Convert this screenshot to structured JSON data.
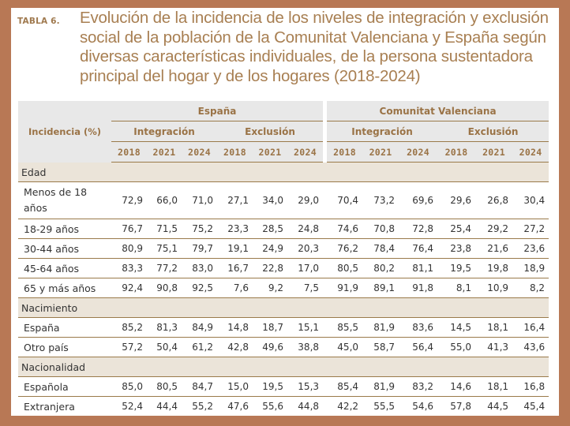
{
  "title": {
    "label": "TABLA 6.",
    "text": "Evolución de la incidencia de los niveles de integración y exclusión social de la población de la Comunitat Valenciana y España según diversas características individuales, de la persona sustentadora principal del hogar y de los hogares (2018-2024)"
  },
  "colors": {
    "frame": "#b87855",
    "title": "#a87f52",
    "header_bg": "#e8e8e8",
    "group_bg": "#ebe4d9",
    "rule": "#9a7a4a"
  },
  "header": {
    "row_label": "Incidencia (%)",
    "regions": [
      "España",
      "Comunitat Valenciana"
    ],
    "measures": [
      "Integración",
      "Exclusión",
      "Integración",
      "Exclusión"
    ],
    "years": [
      "2018",
      "2021",
      "2024",
      "2018",
      "2021",
      "2024",
      "2018",
      "2021",
      "2024",
      "2018",
      "2021",
      "2024"
    ]
  },
  "groups": [
    {
      "name": "Edad",
      "rows": [
        {
          "label": "Menos de 18 años",
          "values": [
            "72,9",
            "66,0",
            "71,0",
            "27,1",
            "34,0",
            "29,0",
            "70,4",
            "73,2",
            "69,6",
            "29,6",
            "26,8",
            "30,4"
          ]
        },
        {
          "label": "18-29 años",
          "values": [
            "76,7",
            "71,5",
            "75,2",
            "23,3",
            "28,5",
            "24,8",
            "74,6",
            "70,8",
            "72,8",
            "25,4",
            "29,2",
            "27,2"
          ]
        },
        {
          "label": "30-44 años",
          "values": [
            "80,9",
            "75,1",
            "79,7",
            "19,1",
            "24,9",
            "20,3",
            "76,2",
            "78,4",
            "76,4",
            "23,8",
            "21,6",
            "23,6"
          ]
        },
        {
          "label": "45-64 años",
          "values": [
            "83,3",
            "77,2",
            "83,0",
            "16,7",
            "22,8",
            "17,0",
            "80,5",
            "80,2",
            "81,1",
            "19,5",
            "19,8",
            "18,9"
          ]
        },
        {
          "label": "65 y más años",
          "values": [
            "92,4",
            "90,8",
            "92,5",
            "7,6",
            "9,2",
            "7,5",
            "91,9",
            "89,1",
            "91,8",
            "8,1",
            "10,9",
            "8,2"
          ]
        }
      ]
    },
    {
      "name": "Nacimiento",
      "rows": [
        {
          "label": "España",
          "values": [
            "85,2",
            "81,3",
            "84,9",
            "14,8",
            "18,7",
            "15,1",
            "85,5",
            "81,9",
            "83,6",
            "14,5",
            "18,1",
            "16,4"
          ]
        },
        {
          "label": "Otro país",
          "values": [
            "57,2",
            "50,4",
            "61,2",
            "42,8",
            "49,6",
            "38,8",
            "45,0",
            "58,7",
            "56,4",
            "55,0",
            "41,3",
            "43,6"
          ]
        }
      ]
    },
    {
      "name": "Nacionalidad",
      "rows": [
        {
          "label": "Española",
          "values": [
            "85,0",
            "80,5",
            "84,7",
            "15,0",
            "19,5",
            "15,3",
            "85,4",
            "81,9",
            "83,2",
            "14,6",
            "18,1",
            "16,8"
          ]
        },
        {
          "label": "Extranjera",
          "values": [
            "52,4",
            "44,4",
            "55,2",
            "47,6",
            "55,6",
            "44,8",
            "42,2",
            "55,5",
            "54,6",
            "57,8",
            "44,5",
            "45,4"
          ]
        }
      ]
    }
  ]
}
